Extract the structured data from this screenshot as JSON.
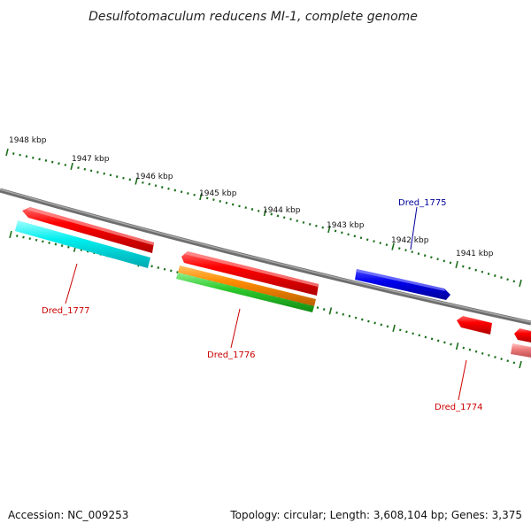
{
  "title": "Desulfotomaculum reducens MI-1, complete genome",
  "ticks": [
    {
      "label": "1948 kbp"
    },
    {
      "label": "1947 kbp"
    },
    {
      "label": "1946 kbp"
    },
    {
      "label": "1945 kbp"
    },
    {
      "label": "1944 kbp"
    },
    {
      "label": "1943 kbp"
    },
    {
      "label": "1942 kbp"
    },
    {
      "label": "1941 kbp"
    }
  ],
  "genes": [
    {
      "label": "Dred_1777",
      "color": "#cc0000"
    },
    {
      "label": "Dred_1776",
      "color": "#cc0000"
    },
    {
      "label": "Dred_1775",
      "color": "#000099"
    },
    {
      "label": "Dred_1774",
      "color": "#cc0000"
    }
  ],
  "colors": {
    "backbone": "#808080",
    "tick": "#1a6e1a",
    "gene_red": "#ff0000",
    "gene_blue": "#0000ee",
    "gene_cyan": "#00e5ee",
    "gene_orange": "#ff8c00",
    "gene_green": "#22bb22",
    "gene_pink": "#f08080"
  },
  "footer": {
    "accession": "Accession: NC_009253",
    "summary": "Topology: circular; Length: 3,608,104 bp; Genes: 3,375"
  }
}
